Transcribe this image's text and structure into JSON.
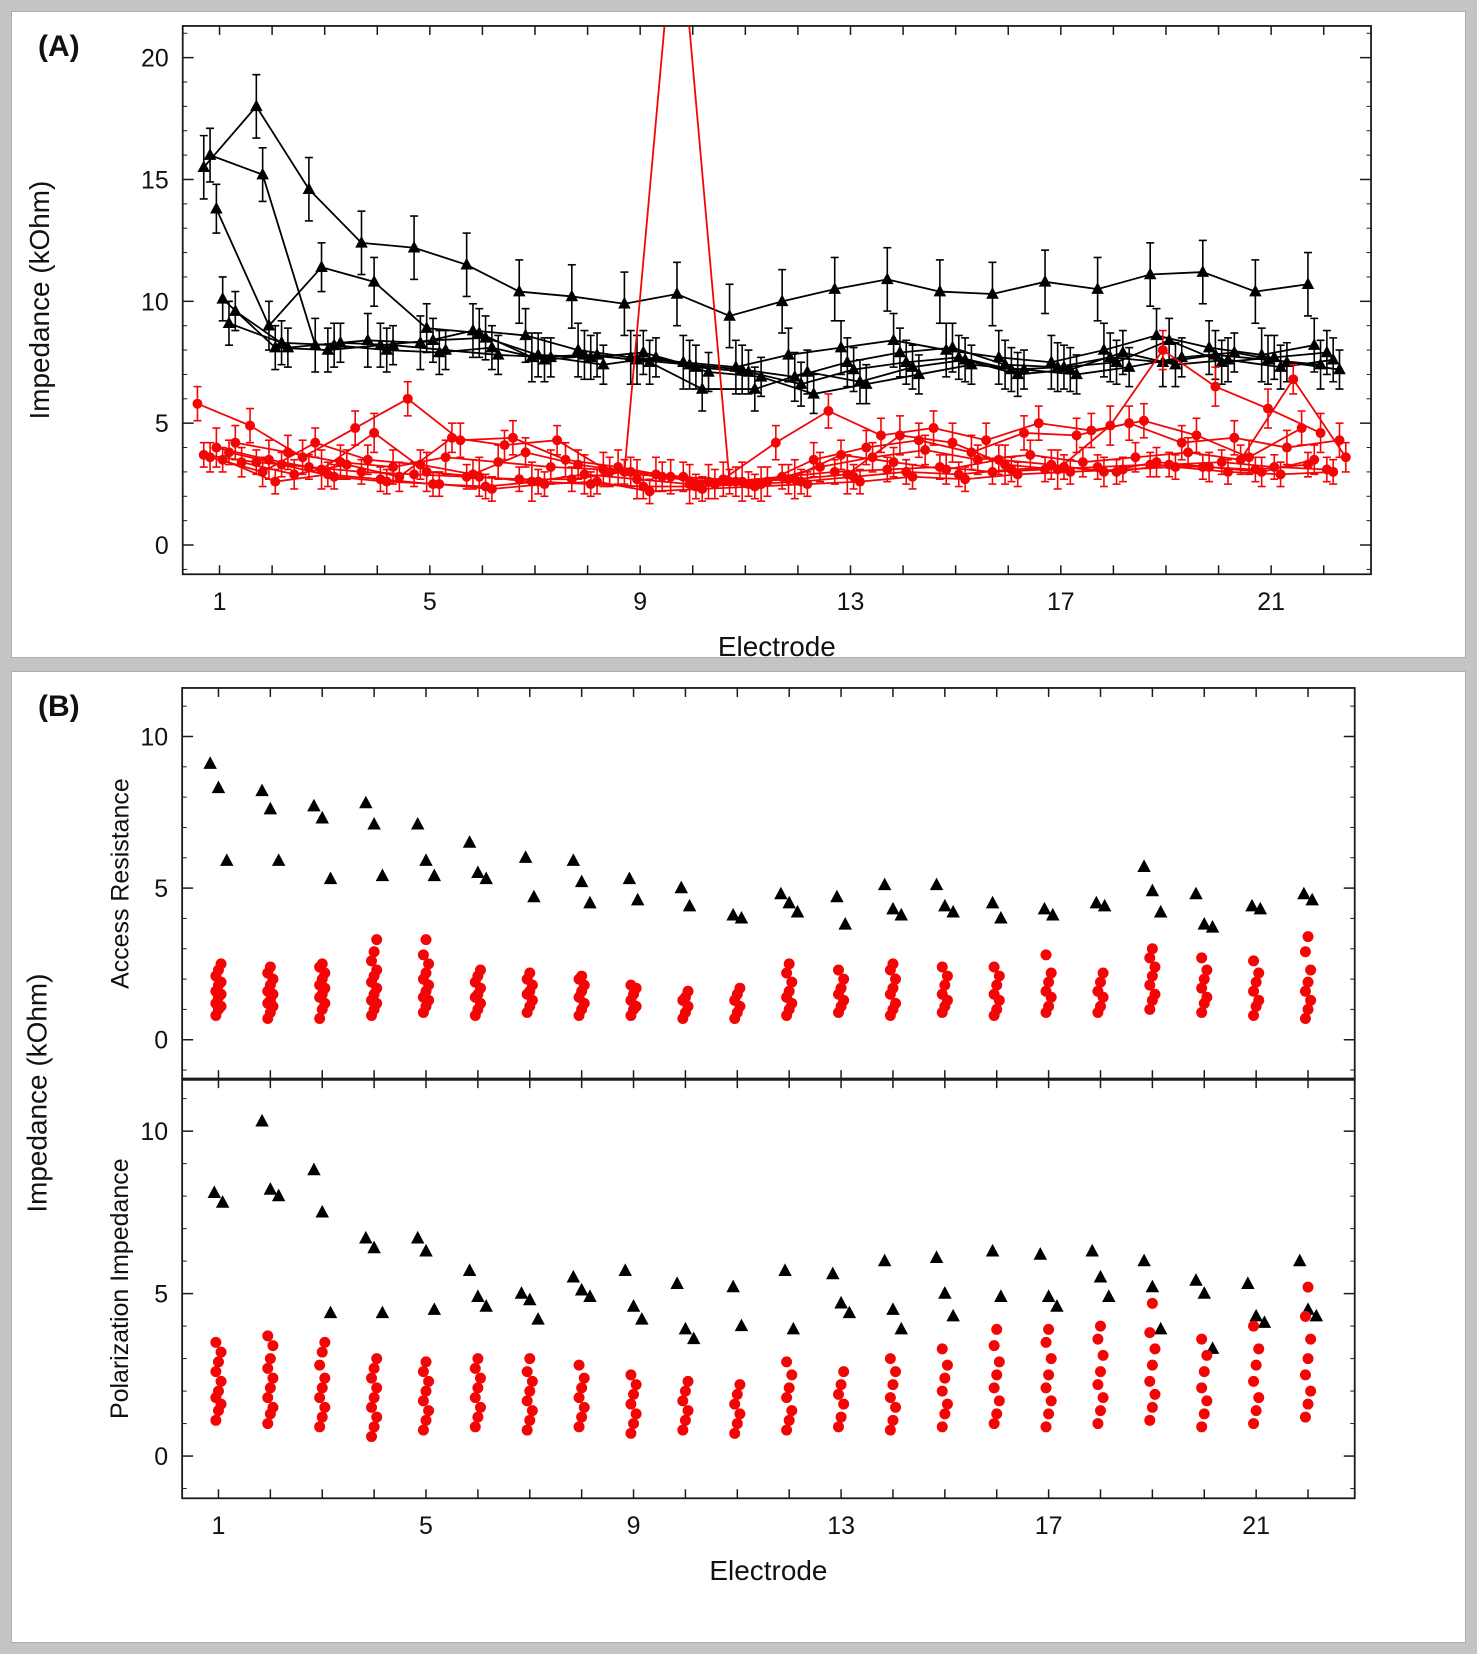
{
  "figure": {
    "panel_a_label": "(A)",
    "panel_b_label": "(B)",
    "b_shared_ylabel": "Impedance (kOhm)"
  },
  "colors": {
    "black": "#000000",
    "red": "#f40505",
    "axis": "#1a1a1a"
  },
  "chart_data": [
    {
      "id": "panel-a",
      "type": "line",
      "title": "",
      "xlabel": "Electrode",
      "ylabel": "Impedance (kOhm)",
      "xlim": [
        0.3,
        22.9
      ],
      "ylim": [
        -1.2,
        21.3
      ],
      "xticks": [
        1,
        5,
        9,
        13,
        17,
        21
      ],
      "yticks": [
        0,
        5,
        10,
        15,
        20
      ],
      "x": [
        1,
        2,
        3,
        4,
        5,
        6,
        7,
        8,
        9,
        10,
        11,
        12,
        13,
        14,
        15,
        16,
        17,
        18,
        19,
        20,
        21,
        22
      ],
      "series": [
        {
          "name": "black-1",
          "color": "black",
          "marker": "triangle",
          "err": 1.3,
          "values": [
            15.5,
            18.0,
            14.6,
            12.4,
            12.2,
            11.5,
            10.4,
            10.2,
            9.9,
            10.3,
            9.4,
            10.0,
            10.5,
            10.9,
            10.4,
            10.3,
            10.8,
            10.5,
            11.1,
            11.2,
            10.4,
            10.7
          ]
        },
        {
          "name": "black-2",
          "color": "black",
          "marker": "triangle",
          "err": 1.1,
          "values": [
            16.0,
            15.2,
            8.2,
            8.4,
            8.3,
            8.8,
            8.6,
            8.0,
            7.7,
            7.5,
            7.3,
            7.8,
            8.1,
            8.4,
            8.0,
            7.7,
            7.5,
            8.0,
            8.6,
            8.1,
            7.8,
            8.2
          ]
        },
        {
          "name": "black-3",
          "color": "black",
          "marker": "triangle",
          "err": 1.0,
          "values": [
            13.8,
            9.0,
            11.4,
            10.8,
            8.9,
            8.7,
            7.7,
            7.8,
            7.6,
            7.4,
            7.2,
            6.9,
            7.5,
            7.9,
            8.1,
            7.4,
            7.3,
            7.7,
            7.5,
            7.8,
            7.6,
            7.4
          ]
        },
        {
          "name": "black-4",
          "color": "black",
          "marker": "triangle",
          "err": 0.9,
          "values": [
            10.1,
            8.1,
            8.0,
            8.2,
            8.4,
            8.5,
            7.8,
            7.7,
            7.9,
            7.3,
            7.1,
            6.6,
            7.2,
            7.5,
            7.7,
            7.2,
            7.3,
            7.5,
            8.4,
            7.5,
            7.7,
            7.9
          ]
        },
        {
          "name": "black-5",
          "color": "black",
          "marker": "triangle",
          "err": 0.9,
          "values": [
            9.1,
            8.3,
            8.2,
            8.0,
            7.9,
            8.1,
            7.6,
            7.8,
            7.5,
            6.4,
            6.4,
            7.1,
            6.7,
            7.3,
            7.6,
            7.0,
            7.2,
            7.9,
            7.4,
            7.6,
            7.3,
            7.6
          ]
        },
        {
          "name": "black-6",
          "color": "black",
          "marker": "triangle",
          "err": 0.8,
          "values": [
            9.6,
            8.1,
            8.3,
            8.2,
            8.0,
            7.8,
            7.7,
            7.4,
            7.7,
            7.1,
            6.9,
            6.2,
            6.6,
            7.0,
            7.4,
            7.2,
            7.0,
            7.3,
            7.7,
            7.9,
            7.5,
            7.2
          ]
        },
        {
          "name": "red-1",
          "color": "red",
          "marker": "circle",
          "err": 0.7,
          "values": [
            5.8,
            4.9,
            3.6,
            4.8,
            6.0,
            4.3,
            4.4,
            3.5,
            3.2,
            2.8,
            2.7,
            4.2,
            5.5,
            4.5,
            4.8,
            4.3,
            5.0,
            4.7,
            5.1,
            4.5,
            3.6,
            4.8
          ]
        },
        {
          "name": "red-2",
          "color": "red",
          "marker": "circle",
          "err": 0.5,
          "values": [
            3.7,
            3.4,
            3.2,
            3.0,
            2.9,
            2.8,
            2.7,
            2.7,
            3.0,
            27.0,
            2.6,
            2.8,
            3.0,
            3.1,
            3.2,
            3.0,
            3.1,
            3.2,
            3.3,
            3.2,
            3.1,
            3.3
          ]
        },
        {
          "name": "red-3",
          "color": "red",
          "marker": "circle",
          "err": 0.6,
          "values": [
            3.6,
            3.0,
            4.2,
            3.5,
            3.3,
            2.9,
            3.8,
            3.3,
            3.0,
            2.8,
            2.6,
            2.7,
            3.7,
            3.4,
            3.1,
            3.5,
            3.3,
            3.0,
            3.4,
            3.2,
            3.0,
            3.5
          ]
        },
        {
          "name": "red-4",
          "color": "red",
          "marker": "circle",
          "err": 0.8,
          "values": [
            4.0,
            3.5,
            3.1,
            4.6,
            3.0,
            2.8,
            2.6,
            2.9,
            2.7,
            2.5,
            2.6,
            2.7,
            2.9,
            4.5,
            4.2,
            3.3,
            3.1,
            4.9,
            8.0,
            6.5,
            5.6,
            4.6
          ]
        },
        {
          "name": "red-5",
          "color": "red",
          "marker": "circle",
          "err": 0.5,
          "values": [
            3.5,
            2.6,
            2.9,
            2.7,
            2.5,
            2.4,
            2.6,
            2.5,
            2.4,
            2.4,
            2.5,
            2.6,
            2.8,
            3.0,
            2.9,
            3.1,
            3.2,
            3.0,
            3.3,
            3.4,
            3.2,
            3.1
          ]
        },
        {
          "name": "red-6",
          "color": "red",
          "marker": "circle",
          "err": 0.5,
          "values": [
            3.8,
            3.3,
            2.8,
            2.6,
            2.5,
            2.3,
            2.5,
            2.6,
            2.2,
            2.3,
            2.4,
            2.5,
            2.6,
            2.8,
            2.7,
            2.9,
            3.0,
            3.1,
            3.2,
            3.0,
            2.9,
            3.0
          ]
        },
        {
          "name": "red-7",
          "color": "red",
          "marker": "circle",
          "err": 0.7,
          "values": [
            4.2,
            3.8,
            3.4,
            3.2,
            3.6,
            3.4,
            3.2,
            3.1,
            2.9,
            2.6,
            2.5,
            3.5,
            4.0,
            4.3,
            3.8,
            4.6,
            4.5,
            5.0,
            4.2,
            4.4,
            4.0,
            4.3
          ]
        },
        {
          "name": "red-8",
          "color": "red",
          "marker": "circle",
          "err": 0.6,
          "values": [
            3.4,
            2.9,
            3.3,
            2.8,
            4.4,
            4.1,
            4.3,
            3.0,
            2.8,
            2.5,
            2.6,
            3.2,
            3.6,
            3.9,
            3.5,
            3.7,
            3.4,
            3.6,
            3.8,
            3.5,
            6.8,
            3.6
          ]
        }
      ]
    },
    {
      "id": "panel-b-top",
      "type": "scatter",
      "ylabel": "Access Resistance",
      "xlim": [
        0.3,
        22.9
      ],
      "ylim": [
        -1.3,
        11.6
      ],
      "xticks": [
        1,
        5,
        9,
        13,
        17,
        21
      ],
      "yticks": [
        0,
        5,
        10
      ],
      "black": [
        [
          9.1,
          8.3,
          5.9
        ],
        [
          8.2,
          7.6,
          5.9
        ],
        [
          7.7,
          7.3,
          5.3
        ],
        [
          7.8,
          7.1,
          5.4
        ],
        [
          7.1,
          5.9,
          5.4
        ],
        [
          6.5,
          5.5,
          5.3
        ],
        [
          6.0,
          4.7
        ],
        [
          5.9,
          5.2,
          4.5
        ],
        [
          5.3,
          4.6
        ],
        [
          5.0,
          4.4
        ],
        [
          4.1,
          4.0
        ],
        [
          4.8,
          4.5,
          4.2
        ],
        [
          4.7,
          3.8
        ],
        [
          5.1,
          4.3,
          4.1
        ],
        [
          5.1,
          4.4,
          4.2
        ],
        [
          4.5,
          4.0
        ],
        [
          4.3,
          4.1
        ],
        [
          4.5,
          4.4
        ],
        [
          5.7,
          4.9,
          4.2
        ],
        [
          4.8,
          3.8,
          3.7
        ],
        [
          4.4,
          4.3
        ],
        [
          4.8,
          4.6
        ]
      ],
      "red": [
        [
          0.8,
          1.0,
          1.1,
          1.2,
          1.4,
          1.5,
          1.6,
          1.8,
          1.9,
          2.1,
          2.3,
          2.5
        ],
        [
          0.7,
          0.9,
          1.1,
          1.2,
          1.3,
          1.5,
          1.6,
          1.8,
          2.0,
          2.2,
          2.4
        ],
        [
          0.7,
          1.0,
          1.2,
          1.4,
          1.5,
          1.7,
          1.8,
          2.0,
          2.2,
          2.4,
          2.5
        ],
        [
          0.8,
          1.0,
          1.2,
          1.3,
          1.5,
          1.7,
          1.9,
          2.1,
          2.3,
          2.6,
          2.9,
          3.3
        ],
        [
          0.9,
          1.1,
          1.3,
          1.4,
          1.6,
          1.8,
          2.0,
          2.2,
          2.5,
          2.8,
          3.3
        ],
        [
          0.8,
          1.0,
          1.2,
          1.4,
          1.5,
          1.7,
          1.9,
          2.1,
          2.3
        ],
        [
          0.9,
          1.1,
          1.3,
          1.5,
          1.6,
          1.8,
          2.0,
          2.2
        ],
        [
          0.8,
          1.0,
          1.2,
          1.4,
          1.6,
          1.8,
          2.0,
          2.1
        ],
        [
          0.8,
          1.0,
          1.1,
          1.3,
          1.5,
          1.7,
          1.8
        ],
        [
          0.7,
          0.9,
          1.1,
          1.3,
          1.4,
          1.6
        ],
        [
          0.7,
          0.9,
          1.1,
          1.3,
          1.5,
          1.7
        ],
        [
          0.8,
          1.0,
          1.2,
          1.4,
          1.6,
          1.9,
          2.2,
          2.5
        ],
        [
          0.9,
          1.1,
          1.3,
          1.5,
          1.7,
          2.0,
          2.3
        ],
        [
          0.8,
          1.0,
          1.2,
          1.5,
          1.7,
          2.0,
          2.3,
          2.5
        ],
        [
          0.9,
          1.1,
          1.3,
          1.5,
          1.8,
          2.1,
          2.4
        ],
        [
          0.8,
          1.0,
          1.3,
          1.5,
          1.8,
          2.1,
          2.4
        ],
        [
          0.9,
          1.1,
          1.4,
          1.6,
          1.9,
          2.2,
          2.8
        ],
        [
          0.9,
          1.1,
          1.4,
          1.6,
          1.9,
          2.2
        ],
        [
          1.0,
          1.3,
          1.5,
          1.8,
          2.1,
          2.4,
          2.7,
          3.0
        ],
        [
          0.9,
          1.2,
          1.4,
          1.7,
          2.0,
          2.3,
          2.7
        ],
        [
          0.8,
          1.1,
          1.3,
          1.6,
          1.9,
          2.2,
          2.6
        ],
        [
          0.7,
          1.0,
          1.3,
          1.6,
          1.9,
          2.3,
          2.9,
          3.4
        ]
      ]
    },
    {
      "id": "panel-b-bottom",
      "type": "scatter",
      "xlabel": "Electrode",
      "ylabel": "Polarization Impedance",
      "xlim": [
        0.3,
        22.9
      ],
      "ylim": [
        -1.3,
        11.6
      ],
      "xticks": [
        1,
        5,
        9,
        13,
        17,
        21
      ],
      "yticks": [
        0,
        5,
        10
      ],
      "black": [
        [
          8.1,
          7.8
        ],
        [
          10.3,
          8.2,
          8.0
        ],
        [
          8.8,
          7.5,
          4.4
        ],
        [
          6.7,
          6.4,
          4.4
        ],
        [
          6.7,
          6.3,
          4.5
        ],
        [
          5.7,
          4.9,
          4.6
        ],
        [
          5.0,
          4.8,
          4.2
        ],
        [
          5.5,
          5.1,
          4.9
        ],
        [
          5.7,
          4.6,
          4.2
        ],
        [
          5.3,
          3.9,
          3.6
        ],
        [
          5.2,
          4.0
        ],
        [
          5.7,
          3.9
        ],
        [
          5.6,
          4.7,
          4.4
        ],
        [
          6.0,
          4.5,
          3.9
        ],
        [
          6.1,
          5.0,
          4.3
        ],
        [
          6.3,
          4.9
        ],
        [
          6.2,
          4.9,
          4.6
        ],
        [
          6.3,
          5.5,
          4.9
        ],
        [
          6.0,
          5.2,
          3.9
        ],
        [
          5.4,
          5.0,
          3.3
        ],
        [
          5.3,
          4.3,
          4.1
        ],
        [
          6.0,
          4.5,
          4.3
        ]
      ],
      "red": [
        [
          1.1,
          1.4,
          1.6,
          1.8,
          2.0,
          2.3,
          2.6,
          2.9,
          3.2,
          3.5
        ],
        [
          1.0,
          1.3,
          1.5,
          1.8,
          2.1,
          2.4,
          2.7,
          3.0,
          3.4,
          3.7
        ],
        [
          0.9,
          1.2,
          1.5,
          1.8,
          2.1,
          2.4,
          2.8,
          3.2,
          3.5
        ],
        [
          0.6,
          0.9,
          1.2,
          1.5,
          1.8,
          2.1,
          2.4,
          2.7,
          3.0
        ],
        [
          0.8,
          1.1,
          1.4,
          1.7,
          2.0,
          2.3,
          2.6,
          2.9
        ],
        [
          0.9,
          1.2,
          1.5,
          1.8,
          2.1,
          2.4,
          2.7,
          3.0
        ],
        [
          0.8,
          1.1,
          1.4,
          1.7,
          2.0,
          2.3,
          2.6,
          3.0
        ],
        [
          0.9,
          1.2,
          1.5,
          1.8,
          2.1,
          2.4,
          2.8
        ],
        [
          0.7,
          1.0,
          1.3,
          1.6,
          1.9,
          2.2,
          2.5
        ],
        [
          0.8,
          1.1,
          1.4,
          1.7,
          2.0,
          2.3
        ],
        [
          0.7,
          1.0,
          1.3,
          1.6,
          1.9,
          2.2
        ],
        [
          0.8,
          1.1,
          1.4,
          1.8,
          2.1,
          2.5,
          2.9
        ],
        [
          0.9,
          1.2,
          1.6,
          1.9,
          2.2,
          2.6
        ],
        [
          0.8,
          1.1,
          1.5,
          1.8,
          2.2,
          2.6,
          3.0
        ],
        [
          0.9,
          1.3,
          1.6,
          2.0,
          2.4,
          2.8,
          3.3
        ],
        [
          1.0,
          1.3,
          1.7,
          2.1,
          2.5,
          2.9,
          3.4,
          3.9
        ],
        [
          0.9,
          1.3,
          1.7,
          2.1,
          2.5,
          3.0,
          3.5,
          3.9
        ],
        [
          1.0,
          1.4,
          1.8,
          2.2,
          2.6,
          3.1,
          3.6,
          4.0
        ],
        [
          1.1,
          1.5,
          1.9,
          2.3,
          2.8,
          3.3,
          3.8,
          4.7
        ],
        [
          0.9,
          1.3,
          1.7,
          2.1,
          2.6,
          3.1,
          3.6
        ],
        [
          1.0,
          1.4,
          1.8,
          2.3,
          2.8,
          3.3,
          4.0
        ],
        [
          1.2,
          1.6,
          2.0,
          2.5,
          3.0,
          3.6,
          4.3,
          5.2
        ]
      ]
    }
  ]
}
